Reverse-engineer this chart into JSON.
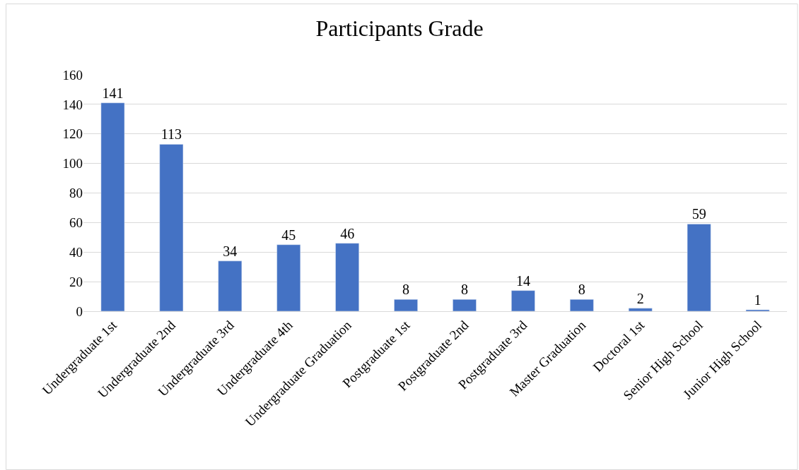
{
  "chart_data": {
    "type": "bar",
    "title": "Participants Grade",
    "categories": [
      "Undergraduate 1st",
      "Undergraduate 2nd",
      "Undergraduate 3rd",
      "Undergraduate 4th",
      "Undergraduate Graduation",
      "Postgraduate 1st",
      "Postgraduate 2nd",
      "Postgraduate 3rd",
      "Master Graduation",
      "Doctoral 1st",
      "Senior High School",
      "Junior High School"
    ],
    "values": [
      141,
      113,
      34,
      45,
      46,
      8,
      8,
      14,
      8,
      2,
      59,
      1
    ],
    "color": "#4472c4",
    "ylim": [
      0,
      160
    ],
    "yticks": [
      0,
      20,
      40,
      60,
      80,
      100,
      120,
      140,
      160
    ],
    "grid": "y",
    "data_labels": true,
    "legend": false
  }
}
